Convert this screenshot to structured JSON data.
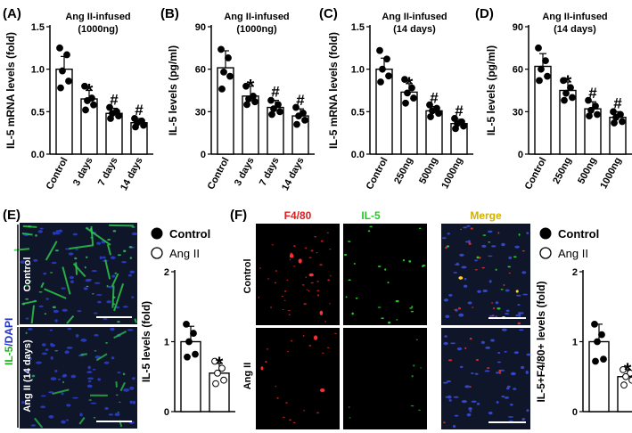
{
  "colors": {
    "ink": "#000000",
    "dot_fill": "#000000",
    "open_dot_fill": "#ffffff",
    "red_channel": "#e02020",
    "green_channel": "#22cc22",
    "merge_label": "#d4b000",
    "ylabel_green": "#1bb31b",
    "ylabel_blue": "#2233cc",
    "micro_bg": "#101828"
  },
  "panels": {
    "A": {
      "letter": "(A)",
      "title_line1": "Ang II-infused",
      "title_line2": "(1000ng)"
    },
    "B": {
      "letter": "(B)",
      "title_line1": "Ang II-infused",
      "title_line2": "(1000ng)"
    },
    "C": {
      "letter": "(C)",
      "title_line1": "Ang II-infused",
      "title_line2": "(14 days)"
    },
    "D": {
      "letter": "(D)",
      "title_line1": "Ang II-infused",
      "title_line2": "(14 days)"
    },
    "E": {
      "letter": "(E)",
      "stain_label_part1": "IL-5",
      "stain_label_part2": "/DAPI",
      "row1_label": "Control",
      "row2_label": "Ang II (14 days)"
    },
    "F": {
      "letter": "(F)",
      "col1_label": "F4/80",
      "col2_label": "IL-5",
      "col3_label": "Merge",
      "row1_label": "Control",
      "row2_label": "Ang II"
    }
  },
  "legend": {
    "control_label": "Control",
    "angii_label": "Ang II"
  },
  "chart_data": [
    {
      "id": "A",
      "type": "bar",
      "ylabel": "IL-5 mRNA levels (fold)",
      "categories": [
        "Control",
        "3 days",
        "7 days",
        "14 days"
      ],
      "ylim": [
        0.0,
        1.5
      ],
      "yticks": [
        "0.0",
        "0.5",
        "1.0",
        "1.5"
      ],
      "values": [
        1.0,
        0.65,
        0.48,
        0.37
      ],
      "errors": [
        0.15,
        0.1,
        0.06,
        0.05
      ],
      "annotations": [
        "",
        "*",
        "#",
        "#"
      ],
      "points": [
        [
          1.25,
          1.17,
          0.98,
          0.86,
          0.78
        ],
        [
          0.8,
          0.66,
          0.63,
          0.58,
          0.52
        ],
        [
          0.55,
          0.5,
          0.48,
          0.45,
          0.42
        ],
        [
          0.42,
          0.39,
          0.37,
          0.34,
          0.32
        ]
      ]
    },
    {
      "id": "B",
      "type": "bar",
      "ylabel": "IL-5 levels (pg/ml)",
      "categories": [
        "Control",
        "3 days",
        "7 days",
        "14 days"
      ],
      "ylim": [
        0,
        90
      ],
      "yticks": [
        "0",
        "30",
        "60",
        "90"
      ],
      "values": [
        61,
        41,
        33,
        27
      ],
      "errors": [
        12,
        7,
        5,
        5
      ],
      "annotations": [
        "",
        "*",
        "#",
        "#"
      ],
      "points": [
        [
          74,
          68,
          58,
          55,
          46
        ],
        [
          48,
          41,
          39,
          37,
          35
        ],
        [
          38,
          35,
          32,
          30,
          28
        ],
        [
          33,
          29,
          27,
          24,
          21
        ]
      ]
    },
    {
      "id": "C",
      "type": "bar",
      "ylabel": "IL-5 mRNA levels (fold)",
      "categories": [
        "Control",
        "250ng",
        "500ng",
        "1000ng"
      ],
      "ylim": [
        0.0,
        1.5
      ],
      "yticks": [
        "0.0",
        "0.5",
        "1.0",
        "1.5"
      ],
      "values": [
        1.0,
        0.73,
        0.51,
        0.36
      ],
      "errors": [
        0.13,
        0.1,
        0.05,
        0.05
      ],
      "annotations": [
        "",
        "*",
        "#",
        "#"
      ],
      "points": [
        [
          1.22,
          1.12,
          1.0,
          0.92,
          0.85
        ],
        [
          0.88,
          0.78,
          0.72,
          0.66,
          0.6
        ],
        [
          0.58,
          0.54,
          0.51,
          0.48,
          0.44
        ],
        [
          0.42,
          0.38,
          0.36,
          0.33,
          0.3
        ]
      ]
    },
    {
      "id": "D",
      "type": "bar",
      "ylabel": "IL-5 levels (pg/ml)",
      "categories": [
        "Control",
        "250ng",
        "500ng",
        "1000ng"
      ],
      "ylim": [
        0,
        90
      ],
      "yticks": [
        "0",
        "30",
        "60",
        "90"
      ],
      "values": [
        62,
        45,
        32,
        26
      ],
      "errors": [
        9,
        6,
        5,
        4
      ],
      "annotations": [
        "",
        "*",
        "#",
        "#"
      ],
      "points": [
        [
          75,
          66,
          60,
          55,
          52
        ],
        [
          52,
          47,
          43,
          40,
          38
        ],
        [
          38,
          34,
          31,
          28,
          27
        ],
        [
          30,
          28,
          26,
          23,
          22
        ]
      ]
    },
    {
      "id": "E",
      "type": "bar",
      "ylabel": "IL-5 levels (fold)",
      "categories": [
        "Control",
        "Ang II"
      ],
      "ylim": [
        0,
        2
      ],
      "yticks": [
        "0",
        "1",
        "2"
      ],
      "values": [
        1.0,
        0.55
      ],
      "errors": [
        0.22,
        0.14
      ],
      "annotations": [
        "",
        "*"
      ],
      "points": [
        [
          1.25,
          1.12,
          1.0,
          0.82,
          0.78
        ],
        [
          0.72,
          0.62,
          0.55,
          0.45,
          0.4
        ]
      ]
    },
    {
      "id": "F",
      "type": "bar",
      "ylabel": "IL-5+F4/80+ levels (fold)",
      "categories": [
        "Control",
        "Ang II"
      ],
      "ylim": [
        0,
        2
      ],
      "yticks": [
        "0",
        "1",
        "2"
      ],
      "values": [
        1.0,
        0.5
      ],
      "errors": [
        0.25,
        0.1
      ],
      "annotations": [
        "",
        "*"
      ],
      "points": [
        [
          1.25,
          1.1,
          1.0,
          0.75,
          0.72
        ],
        [
          0.6,
          0.55,
          0.5,
          0.45,
          0.38
        ]
      ]
    }
  ]
}
